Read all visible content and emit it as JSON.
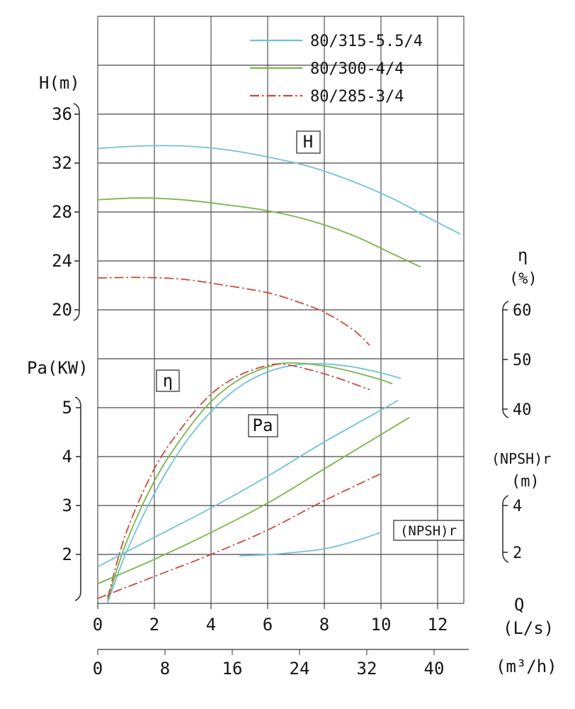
{
  "chart_data": {
    "type": "line",
    "legend": [
      {
        "label": "80/315-5.5/4",
        "color": "#72c2da",
        "style": "solid"
      },
      {
        "label": "80/300-4/4",
        "color": "#7ab648",
        "style": "solid"
      },
      {
        "label": "80/285-3/4",
        "color": "#cc4a40",
        "style": "dashdot"
      }
    ],
    "axes": {
      "x_ls": {
        "title": "Q",
        "unit": "(L/s)",
        "ticks": [
          0,
          2,
          4,
          6,
          8,
          10,
          12
        ],
        "range": [
          0,
          12.9
        ]
      },
      "x_m3h": {
        "unit": "(m³/h)",
        "ticks": [
          0,
          8,
          16,
          24,
          32,
          40
        ]
      },
      "h": {
        "title": "H(m)",
        "ticks": [
          36,
          32,
          28,
          24,
          20
        ]
      },
      "pa": {
        "title": "Pa(KW)",
        "ticks": [
          5,
          4,
          3,
          2
        ]
      },
      "eta": {
        "title": "η",
        "unit": "(%)",
        "ticks": [
          60,
          50,
          40
        ]
      },
      "npsh": {
        "title": "(NPSH)r",
        "unit": "(m)",
        "ticks": [
          4,
          2
        ]
      }
    },
    "curve_group_labels": {
      "h": "H",
      "eta": "η",
      "pa": "Pa",
      "npsh": "(NPSH)r"
    },
    "series": [
      {
        "family": "H",
        "legend": 0,
        "points": [
          [
            0,
            33.2
          ],
          [
            1.5,
            33.4
          ],
          [
            3,
            33.4
          ],
          [
            4.5,
            33.1
          ],
          [
            6,
            32.5
          ],
          [
            7.5,
            31.7
          ],
          [
            9,
            30.5
          ],
          [
            10.5,
            29.0
          ],
          [
            11.7,
            27.5
          ],
          [
            12.8,
            26.2
          ]
        ]
      },
      {
        "family": "H",
        "legend": 1,
        "points": [
          [
            0,
            29.0
          ],
          [
            1.5,
            29.15
          ],
          [
            3,
            29.0
          ],
          [
            4.5,
            28.6
          ],
          [
            6,
            28.1
          ],
          [
            7.5,
            27.3
          ],
          [
            9,
            26.1
          ],
          [
            10.3,
            24.7
          ],
          [
            11.4,
            23.5
          ]
        ]
      },
      {
        "family": "H",
        "legend": 2,
        "points": [
          [
            0,
            22.6
          ],
          [
            1.5,
            22.65
          ],
          [
            3,
            22.5
          ],
          [
            4.5,
            22.0
          ],
          [
            6,
            21.4
          ],
          [
            7,
            20.7
          ],
          [
            8,
            19.8
          ],
          [
            9,
            18.4
          ],
          [
            9.6,
            17.1
          ]
        ]
      },
      {
        "family": "eta",
        "legend": 0,
        "points": [
          [
            0.35,
            1
          ],
          [
            1,
            11
          ],
          [
            2,
            23
          ],
          [
            3,
            32.5
          ],
          [
            4,
            39.5
          ],
          [
            5,
            44.5
          ],
          [
            6,
            47.5
          ],
          [
            7,
            48.9
          ],
          [
            8,
            49.1
          ],
          [
            9,
            48.5
          ],
          [
            10,
            47.3
          ],
          [
            10.7,
            46.2
          ]
        ]
      },
      {
        "family": "eta",
        "legend": 1,
        "points": [
          [
            0.35,
            1.5
          ],
          [
            1,
            13
          ],
          [
            2,
            25.5
          ],
          [
            3,
            34.5
          ],
          [
            4,
            41.5
          ],
          [
            5,
            46
          ],
          [
            6,
            48.5
          ],
          [
            6.8,
            49.3
          ],
          [
            8,
            48.7
          ],
          [
            9,
            47.5
          ],
          [
            10,
            45.9
          ],
          [
            10.4,
            45.1
          ]
        ]
      },
      {
        "family": "eta",
        "legend": 2,
        "points": [
          [
            0.35,
            2
          ],
          [
            1,
            15
          ],
          [
            2,
            28
          ],
          [
            3,
            36.5
          ],
          [
            4,
            43
          ],
          [
            5,
            46.8
          ],
          [
            6,
            48.8
          ],
          [
            6.6,
            49.0
          ],
          [
            7.5,
            47.9
          ],
          [
            8.5,
            46.2
          ],
          [
            9.6,
            43.9
          ]
        ]
      },
      {
        "family": "Pa",
        "legend": 0,
        "points": [
          [
            0,
            1.75
          ],
          [
            2,
            2.35
          ],
          [
            4,
            2.95
          ],
          [
            6,
            3.6
          ],
          [
            8,
            4.3
          ],
          [
            10,
            4.95
          ],
          [
            10.6,
            5.15
          ]
        ]
      },
      {
        "family": "Pa",
        "legend": 1,
        "points": [
          [
            0,
            1.4
          ],
          [
            2,
            1.9
          ],
          [
            4,
            2.45
          ],
          [
            6,
            3.05
          ],
          [
            8,
            3.75
          ],
          [
            10,
            4.45
          ],
          [
            11,
            4.8
          ]
        ]
      },
      {
        "family": "Pa",
        "legend": 2,
        "points": [
          [
            0,
            1.1
          ],
          [
            2,
            1.55
          ],
          [
            4,
            2.0
          ],
          [
            6,
            2.5
          ],
          [
            8,
            3.1
          ],
          [
            10,
            3.65
          ]
        ]
      },
      {
        "family": "NPSH",
        "legend": 0,
        "points": [
          [
            5,
            1.85
          ],
          [
            6,
            1.9
          ],
          [
            7,
            2.0
          ],
          [
            8,
            2.15
          ],
          [
            9,
            2.45
          ],
          [
            10,
            2.85
          ]
        ]
      }
    ]
  }
}
